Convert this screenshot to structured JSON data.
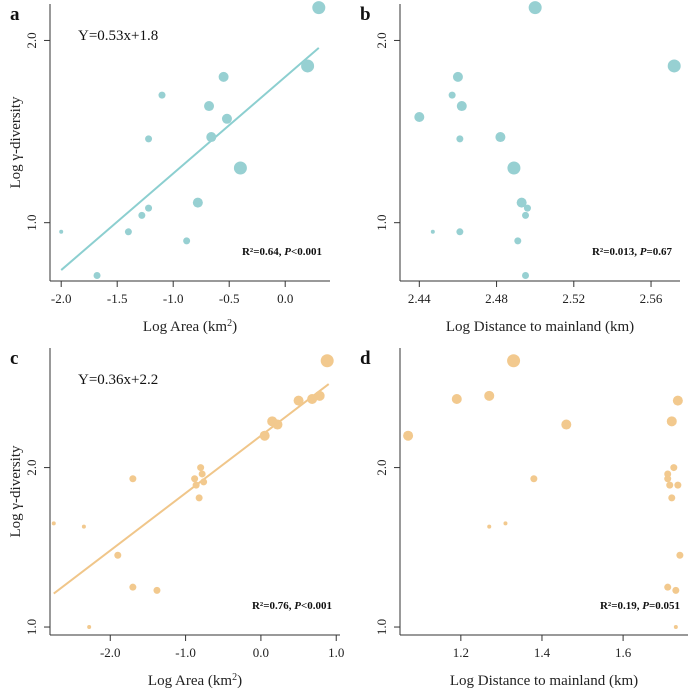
{
  "chart_data": [
    {
      "panel": "a",
      "type": "scatter",
      "color": "#97d0d2",
      "line_color": "#8ccfd0",
      "xlabel": "Log Area (km",
      "xlabel_sup": "2",
      "xlabel_end": ")",
      "ylabel": "Log γ-diversity",
      "xlim": [
        -2.1,
        0.4
      ],
      "ylim": [
        0.68,
        2.2
      ],
      "xticks": [
        -2.0,
        -1.5,
        -1.0,
        -0.5,
        0.0
      ],
      "xtick_labels": [
        "-2.0",
        "-1.5",
        "-1.0",
        "-0.5",
        "0.0"
      ],
      "yticks": [
        1.0,
        2.0
      ],
      "ytick_labels": [
        "1.0",
        "2.0"
      ],
      "equation": "Y=0.53x+1.8",
      "stats": "R²=0.64, ",
      "stats_p": "P",
      "stats_tail": "<0.001",
      "fit": {
        "slope": 0.53,
        "intercept": 1.8,
        "x_range": [
          -2.0,
          0.3
        ]
      },
      "points": [
        {
          "x": -2.0,
          "y": 0.95,
          "size": 1
        },
        {
          "x": -1.68,
          "y": 0.71,
          "size": 2
        },
        {
          "x": -1.4,
          "y": 0.95,
          "size": 2
        },
        {
          "x": -1.28,
          "y": 1.04,
          "size": 2
        },
        {
          "x": -1.22,
          "y": 1.08,
          "size": 2
        },
        {
          "x": -1.22,
          "y": 1.46,
          "size": 2
        },
        {
          "x": -1.1,
          "y": 1.7,
          "size": 2
        },
        {
          "x": -0.88,
          "y": 0.9,
          "size": 2
        },
        {
          "x": -0.78,
          "y": 1.11,
          "size": 3
        },
        {
          "x": -0.68,
          "y": 1.64,
          "size": 3
        },
        {
          "x": -0.66,
          "y": 1.47,
          "size": 3
        },
        {
          "x": -0.55,
          "y": 1.8,
          "size": 3
        },
        {
          "x": -0.52,
          "y": 1.57,
          "size": 3
        },
        {
          "x": -0.4,
          "y": 1.3,
          "size": 4
        },
        {
          "x": 0.2,
          "y": 1.86,
          "size": 4
        },
        {
          "x": 0.3,
          "y": 2.18,
          "size": 4
        }
      ]
    },
    {
      "panel": "b",
      "type": "scatter",
      "color": "#97d0d2",
      "xlabel": "Log Distance to mainland (km)",
      "ylabel": "",
      "xlim": [
        2.43,
        2.575
      ],
      "ylim": [
        0.68,
        2.2
      ],
      "xticks": [
        2.44,
        2.48,
        2.52,
        2.56
      ],
      "xtick_labels": [
        "2.44",
        "2.48",
        "2.52",
        "2.56"
      ],
      "yticks": [
        1.0,
        2.0
      ],
      "ytick_labels": [
        "1.0",
        "2.0"
      ],
      "stats": "R²=0.013, ",
      "stats_p": "P",
      "stats_tail": "=0.67",
      "points": [
        {
          "x": 2.44,
          "y": 1.58,
          "size": 3
        },
        {
          "x": 2.447,
          "y": 0.95,
          "size": 1
        },
        {
          "x": 2.457,
          "y": 1.7,
          "size": 2
        },
        {
          "x": 2.46,
          "y": 1.8,
          "size": 3
        },
        {
          "x": 2.461,
          "y": 1.46,
          "size": 2
        },
        {
          "x": 2.461,
          "y": 0.95,
          "size": 2
        },
        {
          "x": 2.462,
          "y": 1.64,
          "size": 3
        },
        {
          "x": 2.482,
          "y": 1.47,
          "size": 3
        },
        {
          "x": 2.489,
          "y": 1.3,
          "size": 4
        },
        {
          "x": 2.491,
          "y": 0.9,
          "size": 2
        },
        {
          "x": 2.493,
          "y": 1.11,
          "size": 3
        },
        {
          "x": 2.495,
          "y": 1.04,
          "size": 2
        },
        {
          "x": 2.496,
          "y": 1.08,
          "size": 2
        },
        {
          "x": 2.495,
          "y": 0.71,
          "size": 2
        },
        {
          "x": 2.5,
          "y": 2.18,
          "size": 4
        },
        {
          "x": 2.572,
          "y": 1.86,
          "size": 4
        }
      ]
    },
    {
      "panel": "c",
      "type": "scatter",
      "color": "#f2c98e",
      "line_color": "#f0c68a",
      "xlabel": "Log Area (km",
      "xlabel_sup": "2",
      "xlabel_end": ")",
      "ylabel": "Log γ-diversity",
      "xlim": [
        -2.8,
        1.05
      ],
      "ylim": [
        0.95,
        2.75
      ],
      "xticks": [
        -2.0,
        -1.0,
        0.0,
        1.0
      ],
      "xtick_labels": [
        "-2.0",
        "-1.0",
        "0.0",
        "1.0"
      ],
      "yticks": [
        1.0,
        2.0
      ],
      "ytick_labels": [
        "1.0",
        "2.0"
      ],
      "equation": "Y=0.36x+2.2",
      "stats": "R²=0.76, ",
      "stats_p": "P",
      "stats_tail": "<0.001",
      "fit": {
        "slope": 0.36,
        "intercept": 2.2,
        "x_range": [
          -2.75,
          0.9
        ]
      },
      "points": [
        {
          "x": -2.75,
          "y": 1.65,
          "size": 1
        },
        {
          "x": -2.35,
          "y": 1.63,
          "size": 1
        },
        {
          "x": -2.28,
          "y": 1.0,
          "size": 1
        },
        {
          "x": -1.9,
          "y": 1.45,
          "size": 2
        },
        {
          "x": -1.7,
          "y": 1.93,
          "size": 2
        },
        {
          "x": -1.7,
          "y": 1.25,
          "size": 2
        },
        {
          "x": -1.38,
          "y": 1.23,
          "size": 2
        },
        {
          "x": -0.88,
          "y": 1.93,
          "size": 2
        },
        {
          "x": -0.86,
          "y": 1.89,
          "size": 2
        },
        {
          "x": -0.82,
          "y": 1.81,
          "size": 2
        },
        {
          "x": -0.8,
          "y": 2.0,
          "size": 2
        },
        {
          "x": -0.78,
          "y": 1.96,
          "size": 2
        },
        {
          "x": -0.76,
          "y": 1.91,
          "size": 2
        },
        {
          "x": 0.05,
          "y": 2.2,
          "size": 3
        },
        {
          "x": 0.15,
          "y": 2.29,
          "size": 3
        },
        {
          "x": 0.22,
          "y": 2.27,
          "size": 3
        },
        {
          "x": 0.5,
          "y": 2.42,
          "size": 3
        },
        {
          "x": 0.68,
          "y": 2.43,
          "size": 3
        },
        {
          "x": 0.78,
          "y": 2.45,
          "size": 3
        },
        {
          "x": 0.88,
          "y": 2.67,
          "size": 4
        }
      ]
    },
    {
      "panel": "d",
      "type": "scatter",
      "color": "#f2c98e",
      "xlabel": "Log Distance to mainland (km)",
      "ylabel": "",
      "xlim": [
        1.05,
        1.76
      ],
      "ylim": [
        0.95,
        2.75
      ],
      "xticks": [
        1.2,
        1.4,
        1.6
      ],
      "xtick_labels": [
        "1.2",
        "1.4",
        "1.6"
      ],
      "yticks": [
        1.0,
        2.0
      ],
      "ytick_labels": [
        "1.0",
        "2.0"
      ],
      "stats": "R²=0.19, ",
      "stats_p": "P",
      "stats_tail": "=0.051",
      "points": [
        {
          "x": 1.07,
          "y": 2.2,
          "size": 3
        },
        {
          "x": 1.19,
          "y": 2.43,
          "size": 3
        },
        {
          "x": 1.27,
          "y": 1.63,
          "size": 1
        },
        {
          "x": 1.27,
          "y": 2.45,
          "size": 3
        },
        {
          "x": 1.31,
          "y": 1.65,
          "size": 1
        },
        {
          "x": 1.33,
          "y": 2.67,
          "size": 4
        },
        {
          "x": 1.38,
          "y": 1.93,
          "size": 2
        },
        {
          "x": 1.46,
          "y": 2.27,
          "size": 3
        },
        {
          "x": 1.71,
          "y": 1.25,
          "size": 2
        },
        {
          "x": 1.71,
          "y": 1.96,
          "size": 2
        },
        {
          "x": 1.71,
          "y": 1.93,
          "size": 2
        },
        {
          "x": 1.715,
          "y": 1.89,
          "size": 2
        },
        {
          "x": 1.72,
          "y": 1.81,
          "size": 2
        },
        {
          "x": 1.72,
          "y": 2.29,
          "size": 3
        },
        {
          "x": 1.725,
          "y": 2.0,
          "size": 2
        },
        {
          "x": 1.73,
          "y": 1.23,
          "size": 2
        },
        {
          "x": 1.73,
          "y": 1.0,
          "size": 1
        },
        {
          "x": 1.735,
          "y": 1.89,
          "size": 2
        },
        {
          "x": 1.74,
          "y": 1.45,
          "size": 2
        },
        {
          "x": 1.735,
          "y": 2.42,
          "size": 3
        }
      ]
    }
  ]
}
